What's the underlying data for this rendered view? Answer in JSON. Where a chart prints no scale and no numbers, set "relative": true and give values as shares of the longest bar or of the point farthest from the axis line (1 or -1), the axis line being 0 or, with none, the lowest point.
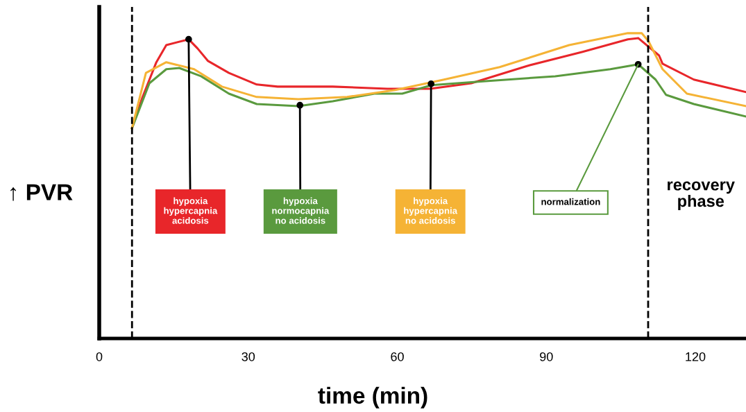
{
  "chart_data": {
    "type": "line",
    "relative": true,
    "ylabel": "↑ PVR",
    "xlabel": "time (min)",
    "xlim": [
      0,
      130.2
    ],
    "xticks": [
      0,
      30,
      60,
      90,
      120
    ],
    "legend": false,
    "marker": "none",
    "line_style": "solid",
    "series": [
      {
        "color": "#e8262a",
        "x": [
          6.6,
          8.7,
          11.5,
          13.5,
          18,
          19.8,
          21.9,
          26.1,
          31.7,
          35.9,
          47,
          58,
          66.6,
          74.9,
          86.2,
          97.3,
          106.4,
          108.5,
          112.7,
          113.4,
          119.7,
          130.2
        ],
        "values": [
          0.689,
          0.79,
          0.905,
          0.961,
          0.98,
          0.95,
          0.909,
          0.87,
          0.832,
          0.825,
          0.825,
          0.818,
          0.818,
          0.836,
          0.893,
          0.939,
          0.98,
          0.984,
          0.927,
          0.9,
          0.848,
          0.807
        ]
      },
      {
        "color": "#5a9a3e",
        "x": [
          6.6,
          10.1,
          13.5,
          16.1,
          20.5,
          26.1,
          31.7,
          40.1,
          47,
          55.4,
          61,
          66.9,
          77.8,
          91.8,
          102.9,
          108.5,
          112,
          114.1,
          119.7,
          130.2
        ],
        "values": [
          0.689,
          0.836,
          0.882,
          0.886,
          0.859,
          0.802,
          0.768,
          0.761,
          0.777,
          0.802,
          0.802,
          0.83,
          0.843,
          0.859,
          0.882,
          0.898,
          0.848,
          0.798,
          0.768,
          0.727
        ]
      },
      {
        "color": "#f5b335",
        "x": [
          6.6,
          9.4,
          13.5,
          19.1,
          24.7,
          31.7,
          40.1,
          49.9,
          59.6,
          69.4,
          80.6,
          94.6,
          106.4,
          109.2,
          110.6,
          113.4,
          118.3,
          130.2
        ],
        "values": [
          0.689,
          0.87,
          0.905,
          0.882,
          0.825,
          0.791,
          0.784,
          0.791,
          0.814,
          0.848,
          0.889,
          0.961,
          1.0,
          1.0,
          0.973,
          0.882,
          0.802,
          0.761
        ]
      }
    ],
    "ref_lines": [
      {
        "axis": "x",
        "value": 6.6,
        "color": "#000000",
        "line_style": "dashed"
      },
      {
        "axis": "x",
        "value": 110.5,
        "color": "#000000",
        "line_style": "dashed"
      }
    ],
    "annotations": [
      {
        "text": "hypoxia\nhypercapnia\nacidosis",
        "x": 18,
        "y": 0.98
      },
      {
        "text": "hypoxia\nnormocapnia\nno acidosis",
        "x": 40.4,
        "y": 0.764
      },
      {
        "text": "hypoxia\nhypercapnia\nno acidosis",
        "x": 66.8,
        "y": 0.834
      },
      {
        "text": "normalization",
        "x": 108.5,
        "y": 0.898
      },
      "recovery\nphase"
    ]
  }
}
